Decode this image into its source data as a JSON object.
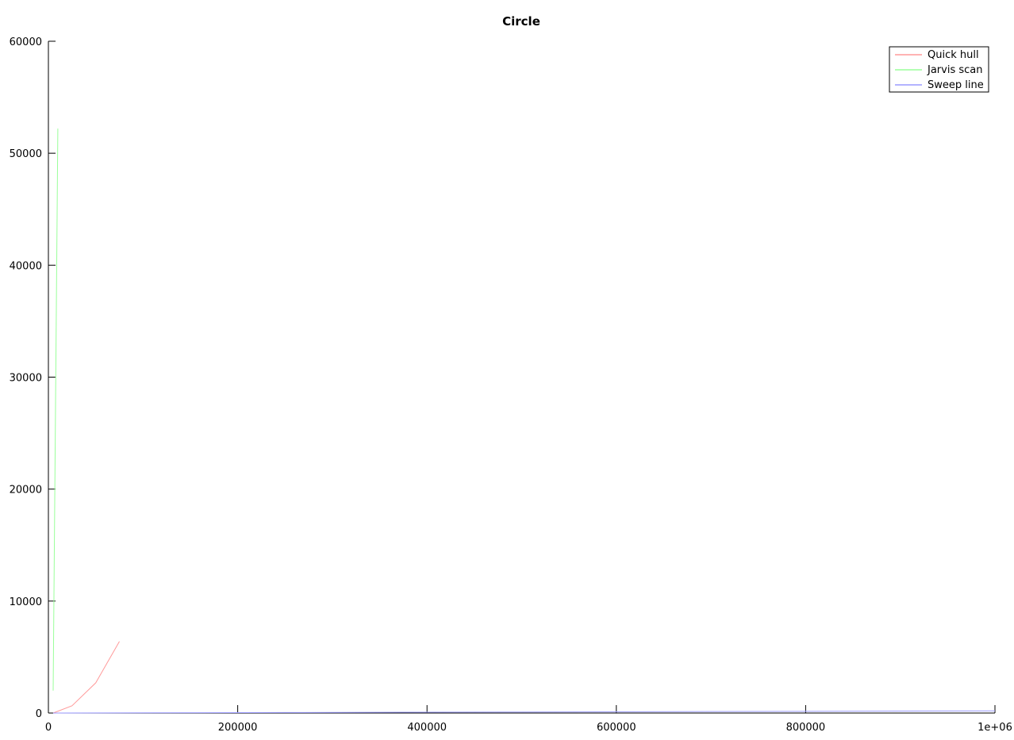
{
  "chart_data": {
    "type": "line",
    "title": "Circle",
    "xlabel": "",
    "ylabel": "",
    "xlim": [
      0,
      1000000
    ],
    "ylim": [
      0,
      60000
    ],
    "xticks": [
      0,
      200000,
      400000,
      600000,
      800000,
      1000000
    ],
    "xtick_labels": [
      "0",
      "200000",
      "400000",
      "600000",
      "800000",
      "1e+06"
    ],
    "yticks": [
      0,
      10000,
      20000,
      30000,
      40000,
      50000,
      60000
    ],
    "ytick_labels": [
      "0",
      "10000",
      "20000",
      "30000",
      "40000",
      "50000",
      "60000"
    ],
    "grid": false,
    "legend_position": "top-right",
    "series": [
      {
        "name": "Quick hull",
        "color": "#ff9a9a",
        "x": [
          5000,
          25000,
          50000,
          75000
        ],
        "y": [
          0,
          650,
          2700,
          6400
        ]
      },
      {
        "name": "Jarvis scan",
        "color": "#9aff9a",
        "x": [
          5000,
          10000
        ],
        "y": [
          2000,
          52200
        ]
      },
      {
        "name": "Sweep line",
        "color": "#9a9aff",
        "x": [
          5000,
          100000,
          250000,
          500000,
          750000,
          1000000
        ],
        "y": [
          0,
          15,
          40,
          90,
          140,
          190
        ]
      }
    ]
  }
}
